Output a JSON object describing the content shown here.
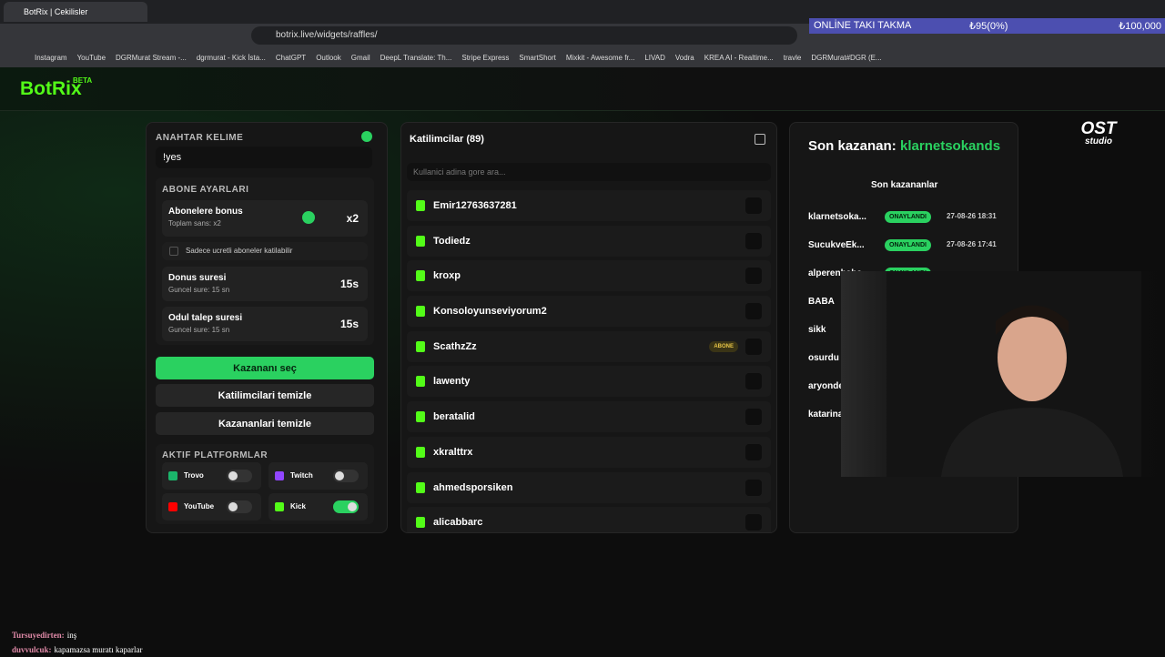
{
  "browser": {
    "tab_title": "BotRix | Cekilisler",
    "url": "botrix.live/widgets/raffles/",
    "bookmarks": [
      "Instagram",
      "YouTube",
      "DGRMurat Stream -...",
      "dgrmurat - Kick İsta...",
      "ChatGPT",
      "Outlook",
      "Gmail",
      "DeepL Translate: Th...",
      "Stripe Express",
      "SmartShort",
      "Mixkit - Awesome fr...",
      "LIVAD",
      "Vodra",
      "KREA AI - Realtime...",
      "travle",
      "DGRMurat#DGR (E..."
    ]
  },
  "overlay": {
    "goal_title": "ONLİNE TAKI TAKMA",
    "goal_current": "₺95(0%)",
    "goal_target": "₺100,000"
  },
  "app": {
    "logo": "BotRix",
    "badge": "BETA"
  },
  "settings": {
    "keyword_label": "ANAHTAR KELIME",
    "keyword": "!yes",
    "sub_title": "ABONE AYARLARI",
    "bonus_label": "Abonelere bonus",
    "bonus_note": "Toplam sans: x2",
    "bonus_value": "x2",
    "paid_only_label": "Sadece ucretli aboneler katilabilir",
    "return_label": "Donus suresi",
    "return_note": "Guncel sure: 15 sn",
    "return_value": "15s",
    "claim_label": "Odul talep suresi",
    "claim_note": "Guncel sure: 15 sn",
    "claim_value": "15s",
    "pick_button": "Kazananı seç",
    "clear_participants": "Katilimcilari temizle",
    "clear_winners": "Kazananlari temizle",
    "platforms_title": "AKTIF PLATFORMLAR",
    "platforms": [
      {
        "name": "Trovo",
        "enabled": false,
        "color": "#1bb56b"
      },
      {
        "name": "Twitch",
        "enabled": false,
        "color": "#9146ff"
      },
      {
        "name": "YouTube",
        "enabled": false,
        "color": "#ff0000"
      },
      {
        "name": "Kick",
        "enabled": true,
        "color": "#53fc18"
      }
    ]
  },
  "participants": {
    "title": "Katilimcilar (89)",
    "search_placeholder": "Kullanici adina gore ara...",
    "list": [
      {
        "name": "Emir12763637281"
      },
      {
        "name": "Todiedz"
      },
      {
        "name": "kroxp"
      },
      {
        "name": "Konsoloyunseviyorum2"
      },
      {
        "name": "ScathzZz",
        "badge": "ABONE"
      },
      {
        "name": "lawenty"
      },
      {
        "name": "beratalid"
      },
      {
        "name": "xkralttrx"
      },
      {
        "name": "ahmedsporsiken"
      },
      {
        "name": "alicabbarc"
      }
    ]
  },
  "winners": {
    "last_label": "Son kazanan:",
    "last_name": "klarnetsokands",
    "list_title": "Son kazananlar",
    "list": [
      {
        "name": "klarnetsoka...",
        "status": "ONAYLANDI",
        "date": "27-08-26 18:31"
      },
      {
        "name": "SucukveEk...",
        "status": "ONAYLANDI",
        "date": "27-08-26 17:41"
      },
      {
        "name": "alperenbaba",
        "status": "ONAYLANDI"
      },
      {
        "name": "BABA"
      },
      {
        "name": "sikk"
      },
      {
        "name": "osurdu"
      },
      {
        "name": "aryonde"
      },
      {
        "name": "katarina"
      }
    ]
  },
  "studio_logo": {
    "line1": "OST",
    "line2": "studio"
  },
  "chat": [
    {
      "user": "Tursuyedirten:",
      "text": "inş"
    },
    {
      "user": "duvvulcuk:",
      "text": "kapamazsa muratı kaparlar"
    }
  ]
}
